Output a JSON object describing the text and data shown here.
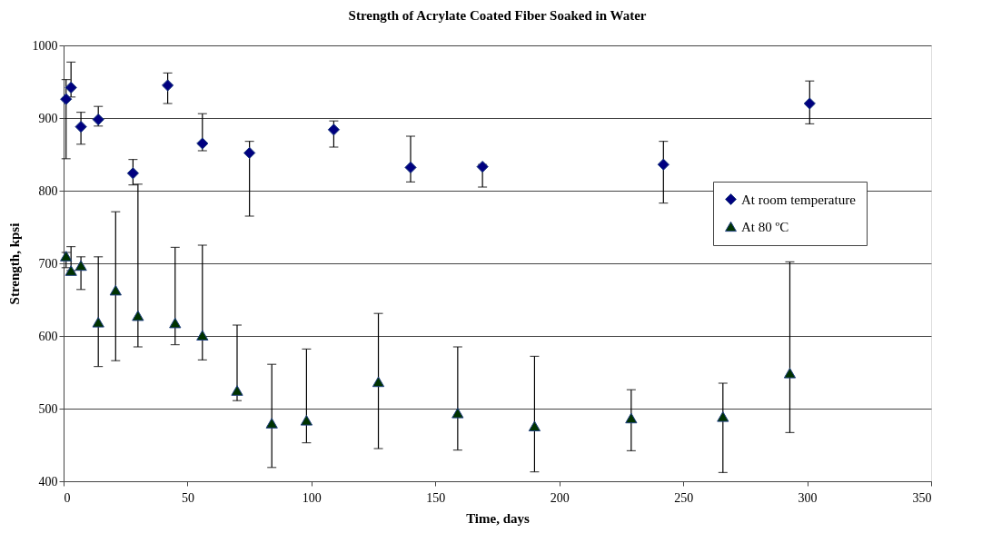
{
  "chart_data": {
    "type": "scatter",
    "title": "Strength of Acrylate Coated Fiber Soaked in Water",
    "xlabel": "Time, days",
    "ylabel": "Strength, kpsi",
    "xlim": [
      0,
      350
    ],
    "xticks": [
      0,
      50,
      100,
      150,
      200,
      250,
      300,
      350
    ],
    "ylim": [
      400,
      1000
    ],
    "yticks": [
      400,
      500,
      600,
      700,
      800,
      900,
      1000
    ],
    "grid": "y",
    "legend": "right",
    "series": [
      {
        "name": "At room temperature",
        "color": "#000080",
        "marker": "diamond",
        "x": [
          1,
          3,
          7,
          14,
          28,
          42,
          56,
          75,
          109,
          140,
          169,
          242,
          301
        ],
        "values": [
          926,
          942,
          888,
          898,
          824,
          945,
          865,
          852,
          884,
          832,
          833,
          836,
          920
        ],
        "errors": [
          [
            844,
            953
          ],
          [
            929,
            977
          ],
          [
            864,
            908
          ],
          [
            889,
            916
          ],
          [
            808,
            843
          ],
          [
            920,
            962
          ],
          [
            855,
            906
          ],
          [
            765,
            868
          ],
          [
            860,
            896
          ],
          [
            812,
            875
          ],
          [
            805,
            836
          ],
          [
            783,
            868
          ],
          [
            892,
            951
          ]
        ]
      },
      {
        "name": "At 80 ºC",
        "color": "#003300",
        "marker": "triangle",
        "x": [
          1,
          3,
          7,
          14,
          21,
          30,
          45,
          56,
          70,
          84,
          98,
          127,
          159,
          190,
          229,
          266,
          293
        ],
        "values": [
          710,
          690,
          697,
          619,
          663,
          628,
          618,
          601,
          525,
          480,
          484,
          537,
          494,
          476,
          487,
          489,
          549
        ],
        "errors": [
          [
            694,
            715
          ],
          [
            690,
            723
          ],
          [
            664,
            709
          ],
          [
            558,
            709
          ],
          [
            566,
            771
          ],
          [
            585,
            809
          ],
          [
            588,
            722
          ],
          [
            567,
            725
          ],
          [
            511,
            615
          ],
          [
            419,
            561
          ],
          [
            453,
            582
          ],
          [
            445,
            631
          ],
          [
            443,
            585
          ],
          [
            413,
            572
          ],
          [
            442,
            526
          ],
          [
            412,
            535
          ],
          [
            467,
            702
          ]
        ]
      }
    ]
  }
}
